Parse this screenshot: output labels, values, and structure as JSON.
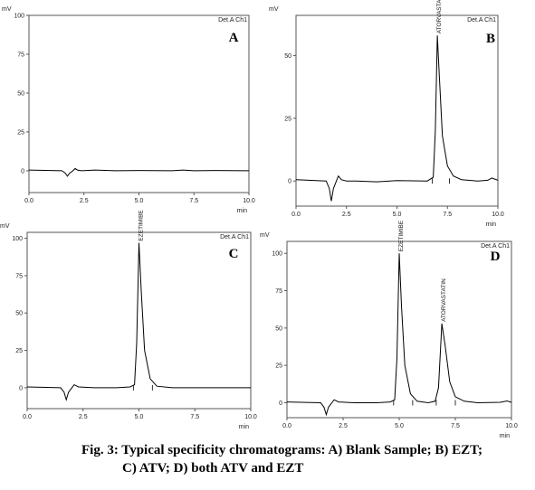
{
  "figure": {
    "caption_line1": "Fig. 3: Typical specificity chromatograms: A) Blank Sample; B) EZT;",
    "caption_line2": "C) ATV; D) both ATV and EZT"
  },
  "chart_data": [
    {
      "type": "line",
      "panel": "A",
      "y_unit": "mV",
      "x_unit": "min",
      "detector": "Det.A Ch1",
      "xlim": [
        0,
        10
      ],
      "ylim": [
        -14,
        100
      ],
      "x_ticks": [
        "0.0",
        "2.5",
        "5.0",
        "7.5",
        "10.0"
      ],
      "y_ticks": [
        "0",
        "25",
        "50",
        "75",
        "100"
      ],
      "peaks": [],
      "series": [
        {
          "x": [
            0,
            1.5,
            1.65,
            1.75,
            1.85,
            2.0,
            2.1,
            2.2,
            2.4,
            3.0,
            4.0,
            5.0,
            6.5,
            7.0,
            7.5,
            8.5,
            10.0
          ],
          "y": [
            0.5,
            0,
            -1.5,
            -3.5,
            -1.5,
            0,
            1.5,
            0.5,
            0,
            0.5,
            0,
            0.2,
            0,
            0.5,
            0,
            0.2,
            0
          ]
        }
      ]
    },
    {
      "type": "line",
      "panel": "B",
      "y_unit": "mV",
      "x_unit": "min",
      "detector": "Det.A Ch1",
      "xlim": [
        0,
        10
      ],
      "ylim": [
        -10,
        66
      ],
      "x_ticks": [
        "0.0",
        "2.5",
        "5.0",
        "7.5",
        "10.0"
      ],
      "y_ticks": [
        "0",
        "25",
        "50"
      ],
      "peaks": [
        {
          "label": "ATORVASTATIN",
          "x": 7.0
        }
      ],
      "series": [
        {
          "x": [
            0,
            1.5,
            1.65,
            1.75,
            1.85,
            2.0,
            2.1,
            2.25,
            2.5,
            3.0,
            4.0,
            5.0,
            6.5,
            6.8,
            6.9,
            7.0,
            7.1,
            7.25,
            7.5,
            7.8,
            8.2,
            9.0,
            9.5,
            9.7,
            10.0
          ],
          "y": [
            0.5,
            0,
            -3,
            -8,
            -3,
            0,
            2,
            0.5,
            0,
            0,
            -0.3,
            0.2,
            0,
            1.5,
            20,
            58,
            42,
            18,
            6,
            2,
            0.5,
            0,
            0.3,
            1.2,
            0.3
          ]
        }
      ]
    },
    {
      "type": "line",
      "panel": "C",
      "y_unit": "mV",
      "x_unit": "min",
      "detector": "Det.A Ch1",
      "xlim": [
        0,
        10
      ],
      "ylim": [
        -14,
        104
      ],
      "x_ticks": [
        "0.0",
        "2.5",
        "5.0",
        "7.5",
        "10.0"
      ],
      "y_ticks": [
        "0",
        "25",
        "50",
        "75",
        "100"
      ],
      "peaks": [
        {
          "label": "EZETIMIBE",
          "x": 5.0
        }
      ],
      "series": [
        {
          "x": [
            0,
            1.5,
            1.65,
            1.75,
            1.85,
            2.0,
            2.1,
            2.3,
            3.0,
            4.0,
            4.6,
            4.8,
            4.9,
            5.0,
            5.1,
            5.25,
            5.5,
            5.8,
            6.5,
            8.0,
            10.0
          ],
          "y": [
            0.5,
            0,
            -3,
            -8,
            -3,
            0,
            2,
            0.5,
            0,
            0,
            0.5,
            2,
            30,
            97,
            65,
            25,
            6,
            1,
            0,
            0,
            0
          ]
        }
      ]
    },
    {
      "type": "line",
      "panel": "D",
      "y_unit": "mV",
      "x_unit": "min",
      "detector": "Det.A Ch1",
      "xlim": [
        0,
        10
      ],
      "ylim": [
        -10,
        108
      ],
      "x_ticks": [
        "0.0",
        "2.5",
        "5.0",
        "7.5",
        "10.0"
      ],
      "y_ticks": [
        "0",
        "25",
        "50",
        "75",
        "100"
      ],
      "peaks": [
        {
          "label": "EZETIMIBE",
          "x": 5.0
        },
        {
          "label": "ATORVASTATIN",
          "x": 6.9
        }
      ],
      "series": [
        {
          "x": [
            0,
            1.5,
            1.65,
            1.75,
            1.85,
            2.0,
            2.1,
            2.3,
            3.0,
            4.0,
            4.6,
            4.8,
            4.9,
            5.0,
            5.1,
            5.25,
            5.5,
            5.8,
            6.3,
            6.6,
            6.75,
            6.9,
            7.05,
            7.25,
            7.5,
            7.9,
            8.5,
            9.5,
            9.8,
            10.0
          ],
          "y": [
            0.5,
            0,
            -3,
            -8,
            -3,
            0,
            2,
            0.5,
            0,
            0,
            0.5,
            2,
            30,
            100,
            65,
            25,
            6,
            1,
            0,
            1,
            10,
            53,
            38,
            14,
            4,
            1,
            0,
            0.3,
            1.2,
            0.3
          ]
        }
      ]
    }
  ]
}
